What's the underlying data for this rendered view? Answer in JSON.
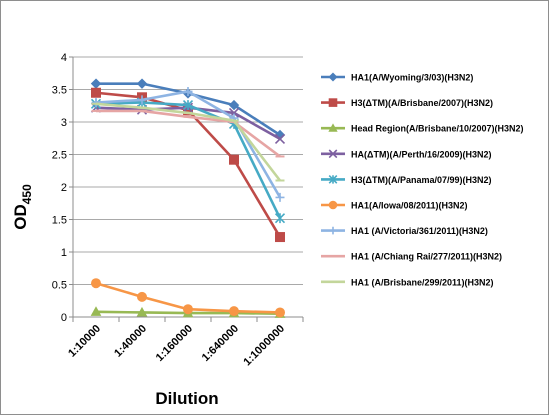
{
  "chart_data": {
    "type": "line",
    "xlabel": "Dilution",
    "ylabel_main": "OD",
    "ylabel_sub": "450",
    "ylim": [
      0,
      4
    ],
    "yticks": [
      "0",
      "0.5",
      "1",
      "1.5",
      "2",
      "2.5",
      "3",
      "3.5",
      "4"
    ],
    "categories": [
      "1:10000",
      "1:40000",
      "1:160000",
      "1:640000",
      "1:1000000"
    ],
    "grid": "horizontal major gridlines",
    "legend_position": "right",
    "series": [
      {
        "name": "HA1(A/Wyoming/3/03)(H3N2)",
        "marker": "diamond",
        "color": "#4a7ebb",
        "values": [
          3.59,
          3.59,
          3.44,
          3.26,
          2.8
        ]
      },
      {
        "name": "H3(ΔTM)(A/Brisbane/2007)(H3N2)",
        "marker": "square",
        "color": "#be4b48",
        "values": [
          3.45,
          3.38,
          3.18,
          2.42,
          1.23
        ]
      },
      {
        "name": "Head Region(A/Brisbane/10/2007)(H3N2)",
        "marker": "triangle",
        "color": "#98b954",
        "values": [
          0.08,
          0.07,
          0.06,
          0.06,
          0.05
        ]
      },
      {
        "name": "HA(ΔTM)(A/Perth/16/2009)(H3N2)",
        "marker": "x",
        "color": "#7d60a0",
        "values": [
          3.22,
          3.19,
          3.22,
          3.14,
          2.74
        ]
      },
      {
        "name": "H3(ΔTM)(A/Panama/07/99)(H3N2)",
        "marker": "star",
        "color": "#46aac5",
        "values": [
          3.28,
          3.3,
          3.26,
          2.97,
          1.52
        ]
      },
      {
        "name": "HA1(A/Iowa/08/2011)(H3N2)",
        "marker": "circle",
        "color": "#f79646",
        "values": [
          0.52,
          0.31,
          0.12,
          0.09,
          0.07
        ]
      },
      {
        "name": "HA1 (A/Victoria/361/2011)(H3N2)",
        "marker": "plus",
        "color": "#8eb4e3",
        "values": [
          3.3,
          3.34,
          3.47,
          3.06,
          1.84
        ]
      },
      {
        "name": "HA1 (A/Chiang Rai/277/2011)(H3N2)",
        "marker": "dash",
        "color": "#e6a5a4",
        "values": [
          3.17,
          3.17,
          3.08,
          3.0,
          2.47
        ]
      },
      {
        "name": "HA1 (A/Brisbane/299/2011)(H3N2)",
        "marker": "dash",
        "color": "#c3d69b",
        "values": [
          3.28,
          3.22,
          3.14,
          3.02,
          2.1
        ]
      }
    ]
  }
}
